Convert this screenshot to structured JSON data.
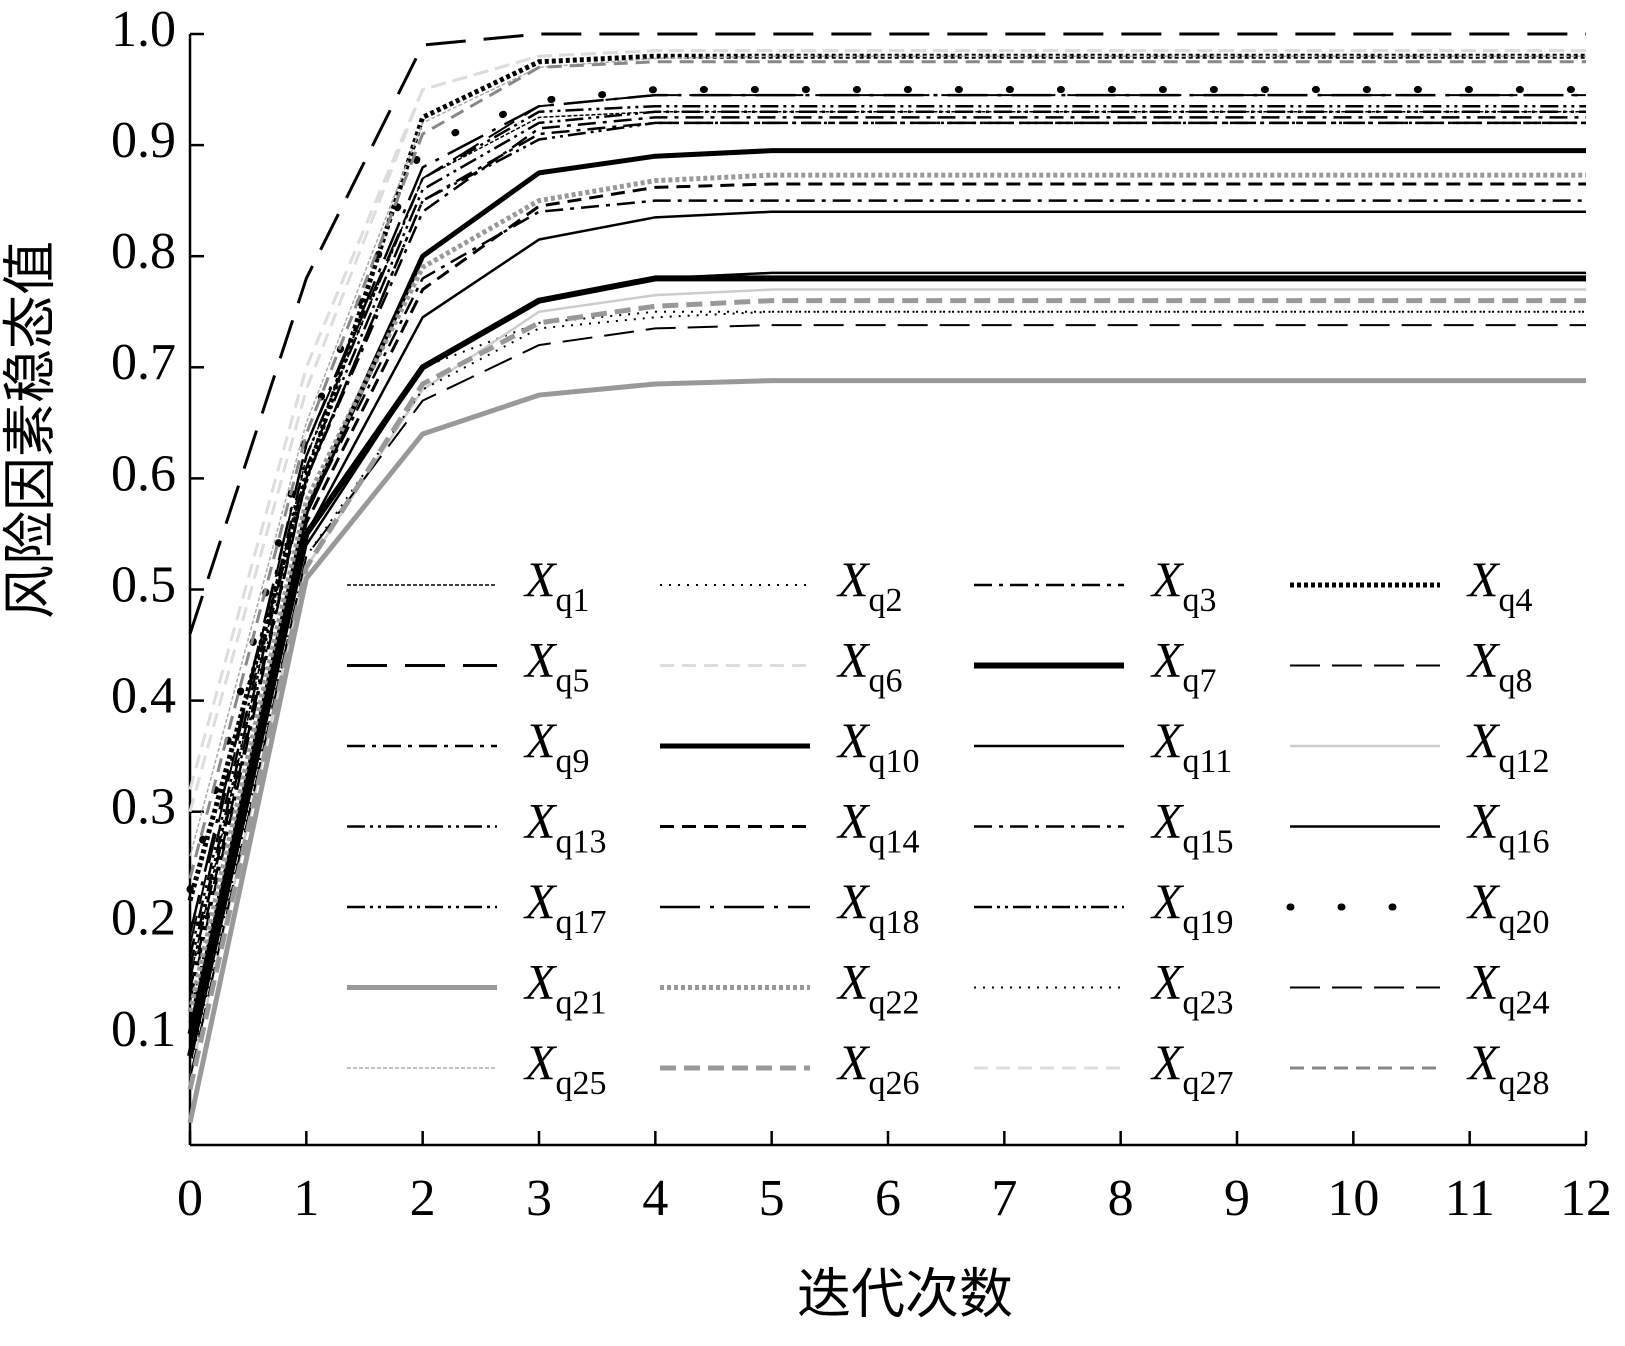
{
  "chart_data": {
    "type": "line",
    "x_label": "迭代次数",
    "y_label": "风险因素稳态值",
    "x": [
      0,
      1,
      2,
      3,
      4,
      5,
      6,
      7,
      8,
      9,
      10,
      11,
      12
    ],
    "xlim": [
      0,
      12
    ],
    "xticks": [
      0,
      1,
      2,
      3,
      4,
      5,
      6,
      7,
      8,
      9,
      10,
      11,
      12
    ],
    "ylim": [
      0,
      1
    ],
    "yticks": [
      0.1,
      0.2,
      0.3,
      0.4,
      0.5,
      0.6,
      0.7,
      0.8,
      0.9,
      {
        "value": 1,
        "label": "1.0"
      }
    ],
    "grid": false,
    "legend": "inside-bottom",
    "series": [
      {
        "name": "Xq1",
        "color": "#000000",
        "style": "fine-dashed",
        "values": [
          0.15,
          0.62,
          0.87,
          0.925,
          0.93,
          0.93,
          0.93,
          0.93,
          0.93,
          0.93,
          0.93,
          0.93,
          0.93
        ]
      },
      {
        "name": "Xq2",
        "color": "#000000",
        "style": "dotted",
        "values": [
          0.12,
          0.55,
          0.7,
          0.74,
          0.75,
          0.75,
          0.75,
          0.75,
          0.75,
          0.75,
          0.75,
          0.75,
          0.75
        ]
      },
      {
        "name": "Xq3",
        "color": "#000000",
        "style": "dash-dot",
        "values": [
          0.1,
          0.57,
          0.78,
          0.84,
          0.85,
          0.85,
          0.85,
          0.85,
          0.85,
          0.85,
          0.85,
          0.85,
          0.85
        ]
      },
      {
        "name": "Xq4",
        "color": "#000000",
        "style": "bold-dotted",
        "values": [
          0.22,
          0.6,
          0.925,
          0.975,
          0.98,
          0.98,
          0.98,
          0.98,
          0.98,
          0.98,
          0.98,
          0.98,
          0.98
        ]
      },
      {
        "name": "Xq5",
        "color": "#000000",
        "style": "long-dash",
        "values": [
          0.46,
          0.78,
          0.99,
          1.0,
          1.0,
          1.0,
          1.0,
          1.0,
          1.0,
          1.0,
          1.0,
          1.0,
          1.0
        ]
      },
      {
        "name": "Xq6",
        "color": "#dddddd",
        "style": "dashed",
        "values": [
          0.3,
          0.68,
          0.95,
          0.98,
          0.985,
          0.985,
          0.985,
          0.985,
          0.985,
          0.985,
          0.985,
          0.985,
          0.985
        ]
      },
      {
        "name": "Xq7",
        "color": "#000000",
        "style": "double",
        "values": [
          0.08,
          0.55,
          0.7,
          0.76,
          0.78,
          0.78,
          0.78,
          0.78,
          0.78,
          0.78,
          0.78,
          0.78,
          0.78
        ]
      },
      {
        "name": "Xq8",
        "color": "#000000",
        "style": "long-dash-thin",
        "values": [
          0.18,
          0.63,
          0.87,
          0.935,
          0.945,
          0.945,
          0.945,
          0.945,
          0.945,
          0.945,
          0.945,
          0.945,
          0.945
        ]
      },
      {
        "name": "Xq9",
        "color": "#000000",
        "style": "dash-dot",
        "values": [
          0.13,
          0.6,
          0.84,
          0.915,
          0.925,
          0.925,
          0.925,
          0.925,
          0.925,
          0.925,
          0.925,
          0.925,
          0.925
        ]
      },
      {
        "name": "Xq10",
        "color": "#000000",
        "style": "thick",
        "values": [
          0.1,
          0.57,
          0.8,
          0.875,
          0.89,
          0.895,
          0.895,
          0.895,
          0.895,
          0.895,
          0.895,
          0.895,
          0.895
        ]
      },
      {
        "name": "Xq11",
        "color": "#000000",
        "style": "solid",
        "values": [
          0.09,
          0.55,
          0.745,
          0.815,
          0.835,
          0.84,
          0.84,
          0.84,
          0.84,
          0.84,
          0.84,
          0.84,
          0.84
        ]
      },
      {
        "name": "Xq12",
        "color": "#cccccc",
        "style": "solid",
        "values": [
          0.06,
          0.52,
          0.68,
          0.75,
          0.765,
          0.77,
          0.77,
          0.77,
          0.77,
          0.77,
          0.77,
          0.77,
          0.77
        ]
      },
      {
        "name": "Xq13",
        "color": "#000000",
        "style": "dash-dot-dot",
        "values": [
          0.16,
          0.61,
          0.86,
          0.92,
          0.93,
          0.93,
          0.93,
          0.93,
          0.93,
          0.93,
          0.93,
          0.93,
          0.93
        ]
      },
      {
        "name": "Xq14",
        "color": "#000000",
        "style": "dashed",
        "values": [
          0.11,
          0.56,
          0.77,
          0.845,
          0.862,
          0.865,
          0.865,
          0.865,
          0.865,
          0.865,
          0.865,
          0.865,
          0.865
        ]
      },
      {
        "name": "Xq15",
        "color": "#000000",
        "style": "dash-dot",
        "values": [
          0.14,
          0.6,
          0.85,
          0.91,
          0.92,
          0.92,
          0.92,
          0.92,
          0.92,
          0.92,
          0.92,
          0.92,
          0.92
        ]
      },
      {
        "name": "Xq16",
        "color": "#000000",
        "style": "solid",
        "values": [
          0.08,
          0.54,
          0.7,
          0.76,
          0.78,
          0.785,
          0.785,
          0.785,
          0.785,
          0.785,
          0.785,
          0.785,
          0.785
        ]
      },
      {
        "name": "Xq17",
        "color": "#000000",
        "style": "dash-dot-dot",
        "values": [
          0.17,
          0.62,
          0.87,
          0.93,
          0.935,
          0.935,
          0.935,
          0.935,
          0.935,
          0.935,
          0.935,
          0.935,
          0.935
        ]
      },
      {
        "name": "Xq18",
        "color": "#000000",
        "style": "long-dash-dot",
        "values": [
          0.19,
          0.63,
          0.88,
          0.935,
          0.945,
          0.945,
          0.945,
          0.945,
          0.945,
          0.945,
          0.945,
          0.945,
          0.945
        ]
      },
      {
        "name": "Xq19",
        "color": "#000000",
        "style": "dash-dot-dot",
        "values": [
          0.15,
          0.6,
          0.85,
          0.905,
          0.92,
          0.92,
          0.92,
          0.92,
          0.92,
          0.92,
          0.92,
          0.92,
          0.92
        ]
      },
      {
        "name": "Xq20",
        "color": "#000000",
        "style": "sparse-dot",
        "values": [
          0.23,
          0.64,
          0.9,
          0.94,
          0.95,
          0.95,
          0.95,
          0.95,
          0.95,
          0.95,
          0.95,
          0.95,
          0.95
        ]
      },
      {
        "name": "Xq21",
        "color": "#999999",
        "style": "thick",
        "values": [
          0.02,
          0.51,
          0.64,
          0.675,
          0.685,
          0.688,
          0.688,
          0.688,
          0.688,
          0.688,
          0.688,
          0.688,
          0.688
        ]
      },
      {
        "name": "Xq22",
        "color": "#999999",
        "style": "bold-dotted",
        "values": [
          0.12,
          0.58,
          0.79,
          0.85,
          0.868,
          0.873,
          0.873,
          0.873,
          0.873,
          0.873,
          0.873,
          0.873,
          0.873
        ]
      },
      {
        "name": "Xq23",
        "color": "#000000",
        "style": "dotted",
        "values": [
          0.07,
          0.53,
          0.68,
          0.735,
          0.745,
          0.75,
          0.75,
          0.75,
          0.75,
          0.75,
          0.75,
          0.75,
          0.75
        ]
      },
      {
        "name": "Xq24",
        "color": "#000000",
        "style": "long-dash-thin",
        "values": [
          0.06,
          0.53,
          0.67,
          0.72,
          0.735,
          0.738,
          0.738,
          0.738,
          0.738,
          0.738,
          0.738,
          0.738,
          0.738
        ]
      },
      {
        "name": "Xq25",
        "color": "#aaaaaa",
        "style": "fine-dashed",
        "values": [
          0.26,
          0.65,
          0.92,
          0.97,
          0.978,
          0.98,
          0.98,
          0.98,
          0.98,
          0.98,
          0.98,
          0.98,
          0.98
        ]
      },
      {
        "name": "Xq26",
        "color": "#999999",
        "style": "double-dashed",
        "values": [
          0.05,
          0.52,
          0.685,
          0.74,
          0.755,
          0.76,
          0.76,
          0.76,
          0.76,
          0.76,
          0.76,
          0.76,
          0.76
        ]
      },
      {
        "name": "Xq27",
        "color": "#dddddd",
        "style": "dashed",
        "values": [
          0.32,
          0.7,
          0.95,
          0.98,
          0.985,
          0.985,
          0.985,
          0.985,
          0.985,
          0.985,
          0.985,
          0.985,
          0.985
        ]
      },
      {
        "name": "Xq28",
        "color": "#888888",
        "style": "dashed",
        "values": [
          0.24,
          0.64,
          0.91,
          0.97,
          0.975,
          0.975,
          0.975,
          0.975,
          0.975,
          0.975,
          0.975,
          0.975,
          0.975
        ]
      }
    ]
  }
}
